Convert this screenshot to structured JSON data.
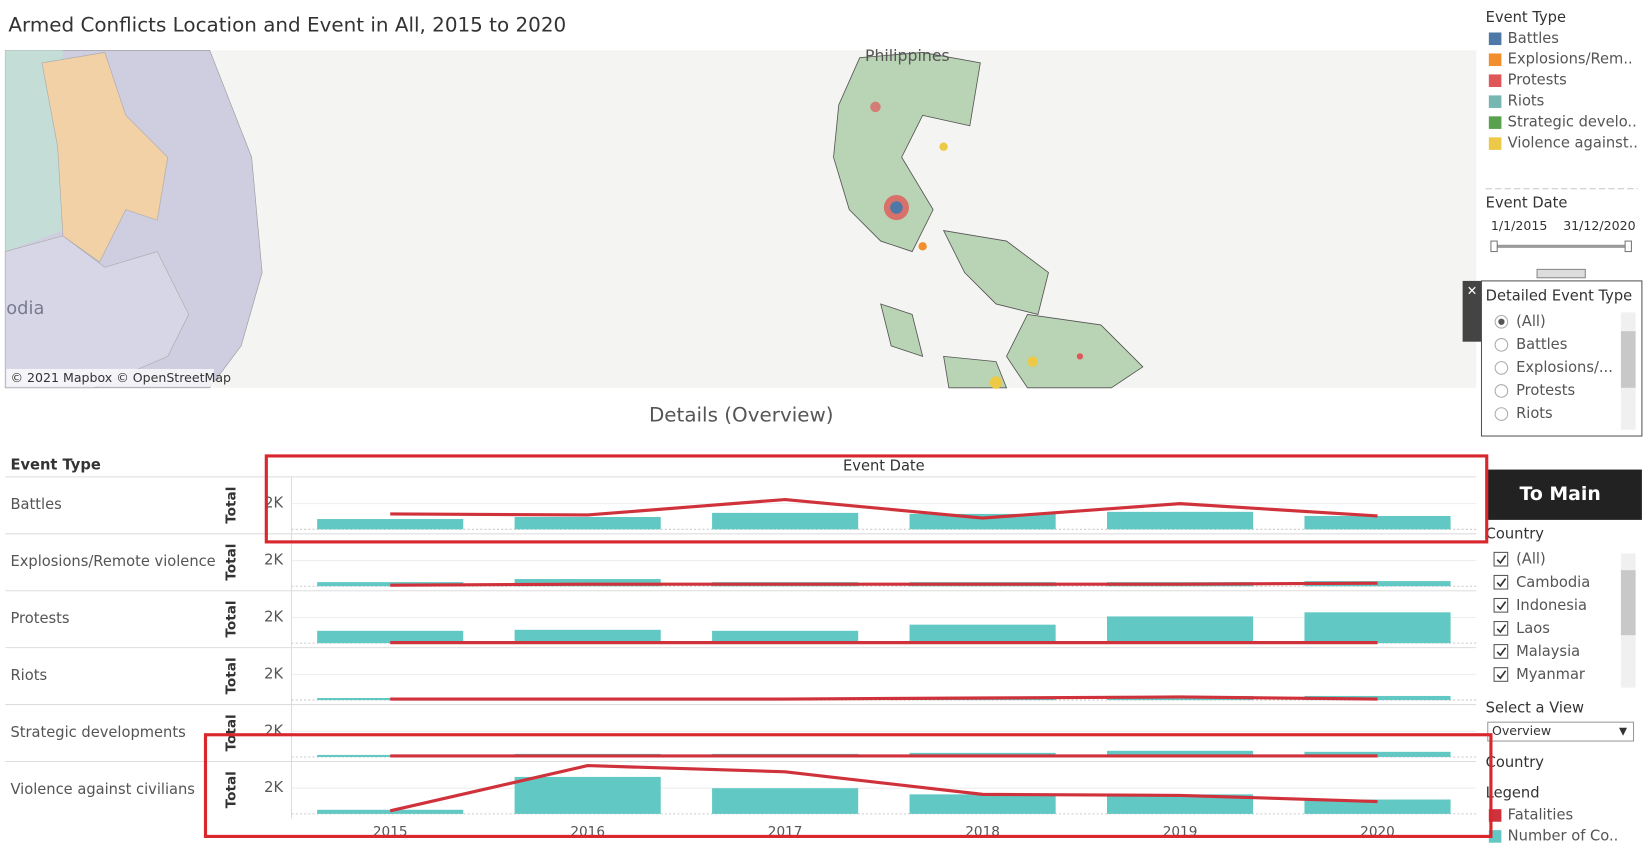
{
  "title": "Armed Conflicts Location and Event in All, 2015 to 2020",
  "map": {
    "attribution": "© 2021 Mapbox © OpenStreetMap",
    "labels": [
      "Philippines",
      "odia"
    ]
  },
  "event_type_legend": {
    "title": "Event Type",
    "items": [
      {
        "label": "Battles",
        "color": "#4e79a7"
      },
      {
        "label": "Explosions/Rem..",
        "color": "#f28e2b"
      },
      {
        "label": "Protests",
        "color": "#e15759"
      },
      {
        "label": "Riots",
        "color": "#76b7b2"
      },
      {
        "label": "Strategic develo..",
        "color": "#59a14f"
      },
      {
        "label": "Violence against..",
        "color": "#edc948"
      }
    ]
  },
  "event_date_filter": {
    "title": "Event Date",
    "start": "1/1/2015",
    "end": "31/12/2020"
  },
  "detailed_event_type": {
    "title": "Detailed Event Type",
    "options": [
      "(All)",
      "Battles",
      "Explosions/...",
      "Protests",
      "Riots"
    ]
  },
  "to_main_button": "To Main",
  "country_filter": {
    "title": "Country",
    "options": [
      "(All)",
      "Cambodia",
      "Indonesia",
      "Laos",
      "Malaysia",
      "Myanmar"
    ]
  },
  "view_selector": {
    "title": "Select a View",
    "value": "Overview"
  },
  "country_heading": "Country",
  "chart_data": {
    "type": "bar_line",
    "title": "Details (Overview)",
    "row_header": "Event Type",
    "column_header": "Event Date",
    "row_axis_label": "Total",
    "legend_title": "Legend",
    "categories": [
      "2015",
      "2016",
      "2017",
      "2018",
      "2019",
      "2020"
    ],
    "ylim": [
      0,
      4000
    ],
    "yticks": [
      {
        "value": 2000,
        "label": "2K"
      }
    ],
    "series": [
      {
        "name": "Fatalities",
        "color": "#d0323c",
        "type": "line"
      },
      {
        "name": "Number of Co..",
        "color": "#62c8c3",
        "type": "bar"
      }
    ],
    "panels": [
      {
        "name": "Battles",
        "series": [
          {
            "values": [
              1200,
              1120,
              2320,
              880,
              2000,
              1040
            ]
          },
          {
            "values": [
              800,
              960,
              1280,
              1200,
              1360,
              1040
            ]
          }
        ]
      },
      {
        "name": "Explosions/Remote violence",
        "series": [
          {
            "values": [
              80,
              160,
              160,
              160,
              160,
              240
            ]
          },
          {
            "values": [
              320,
              560,
              320,
              320,
              320,
              400
            ]
          }
        ]
      },
      {
        "name": "Protests",
        "series": [
          {
            "values": [
              40,
              40,
              40,
              40,
              40,
              40
            ]
          },
          {
            "values": [
              960,
              1040,
              960,
              1440,
              2080,
              2400
            ]
          }
        ]
      },
      {
        "name": "Riots",
        "series": [
          {
            "values": [
              80,
              80,
              80,
              160,
              240,
              80
            ]
          },
          {
            "values": [
              160,
              160,
              160,
              160,
              320,
              320
            ]
          }
        ]
      },
      {
        "name": "Strategic developments",
        "series": [
          {
            "values": [
              80,
              80,
              80,
              80,
              80,
              80
            ]
          },
          {
            "values": [
              160,
              240,
              240,
              320,
              480,
              400
            ]
          }
        ]
      },
      {
        "name": "Violence against civilians",
        "series": [
          {
            "values": [
              240,
              3760,
              3280,
              1520,
              1440,
              960
            ]
          },
          {
            "values": [
              320,
              2880,
              2000,
              1520,
              1520,
              1120
            ]
          }
        ]
      }
    ]
  }
}
